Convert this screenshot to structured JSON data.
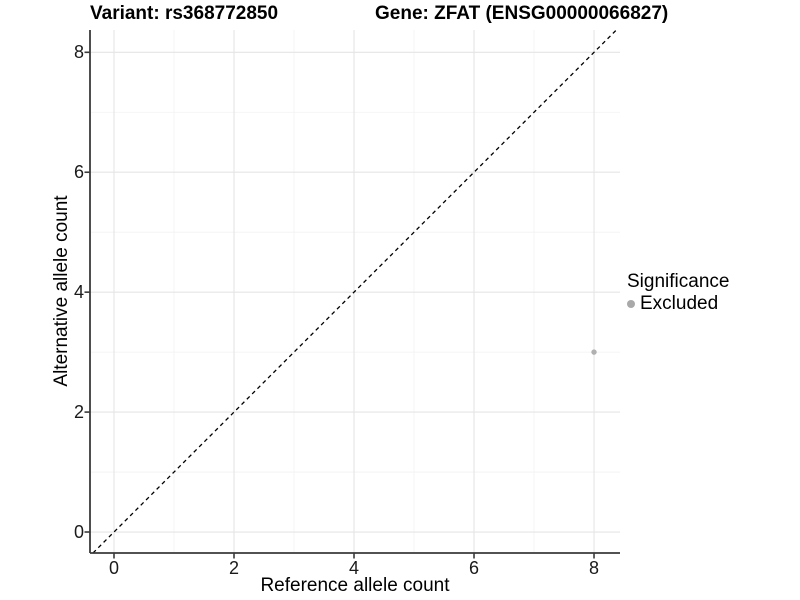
{
  "chart_data": {
    "type": "scatter",
    "title_left": "Variant: rs368772850",
    "title_right": "Gene: ZFAT (ENSG00000066827)",
    "xlabel": "Reference allele count",
    "ylabel": "Alternative allele count",
    "xlim": [
      -0.4,
      8.433
    ],
    "ylim": [
      -0.35,
      8.372
    ],
    "x_ticks": [
      0,
      2,
      4,
      6,
      8
    ],
    "y_ticks": [
      0,
      2,
      4,
      6,
      8
    ],
    "x_minor": [
      1,
      3,
      5,
      7
    ],
    "y_minor": [
      1,
      3,
      5,
      7
    ],
    "grid": {
      "major_color": "#e5e5e5",
      "minor_color": "#f2f2f2",
      "shown": true
    },
    "identity_line": {
      "slope": 1,
      "intercept": 0,
      "style": "dashed",
      "color": "#000000",
      "dash": "4,3.5"
    },
    "points": [
      {
        "x": 8,
        "y": 3,
        "significance": "Excluded",
        "color": "#b0b0b0",
        "radius": 2.7
      }
    ],
    "legend": {
      "title": "Significance",
      "position": "right",
      "items": [
        {
          "label": "Excluded",
          "color": "#a9a9a9"
        }
      ]
    },
    "axis_color": "#3a3a3a"
  }
}
